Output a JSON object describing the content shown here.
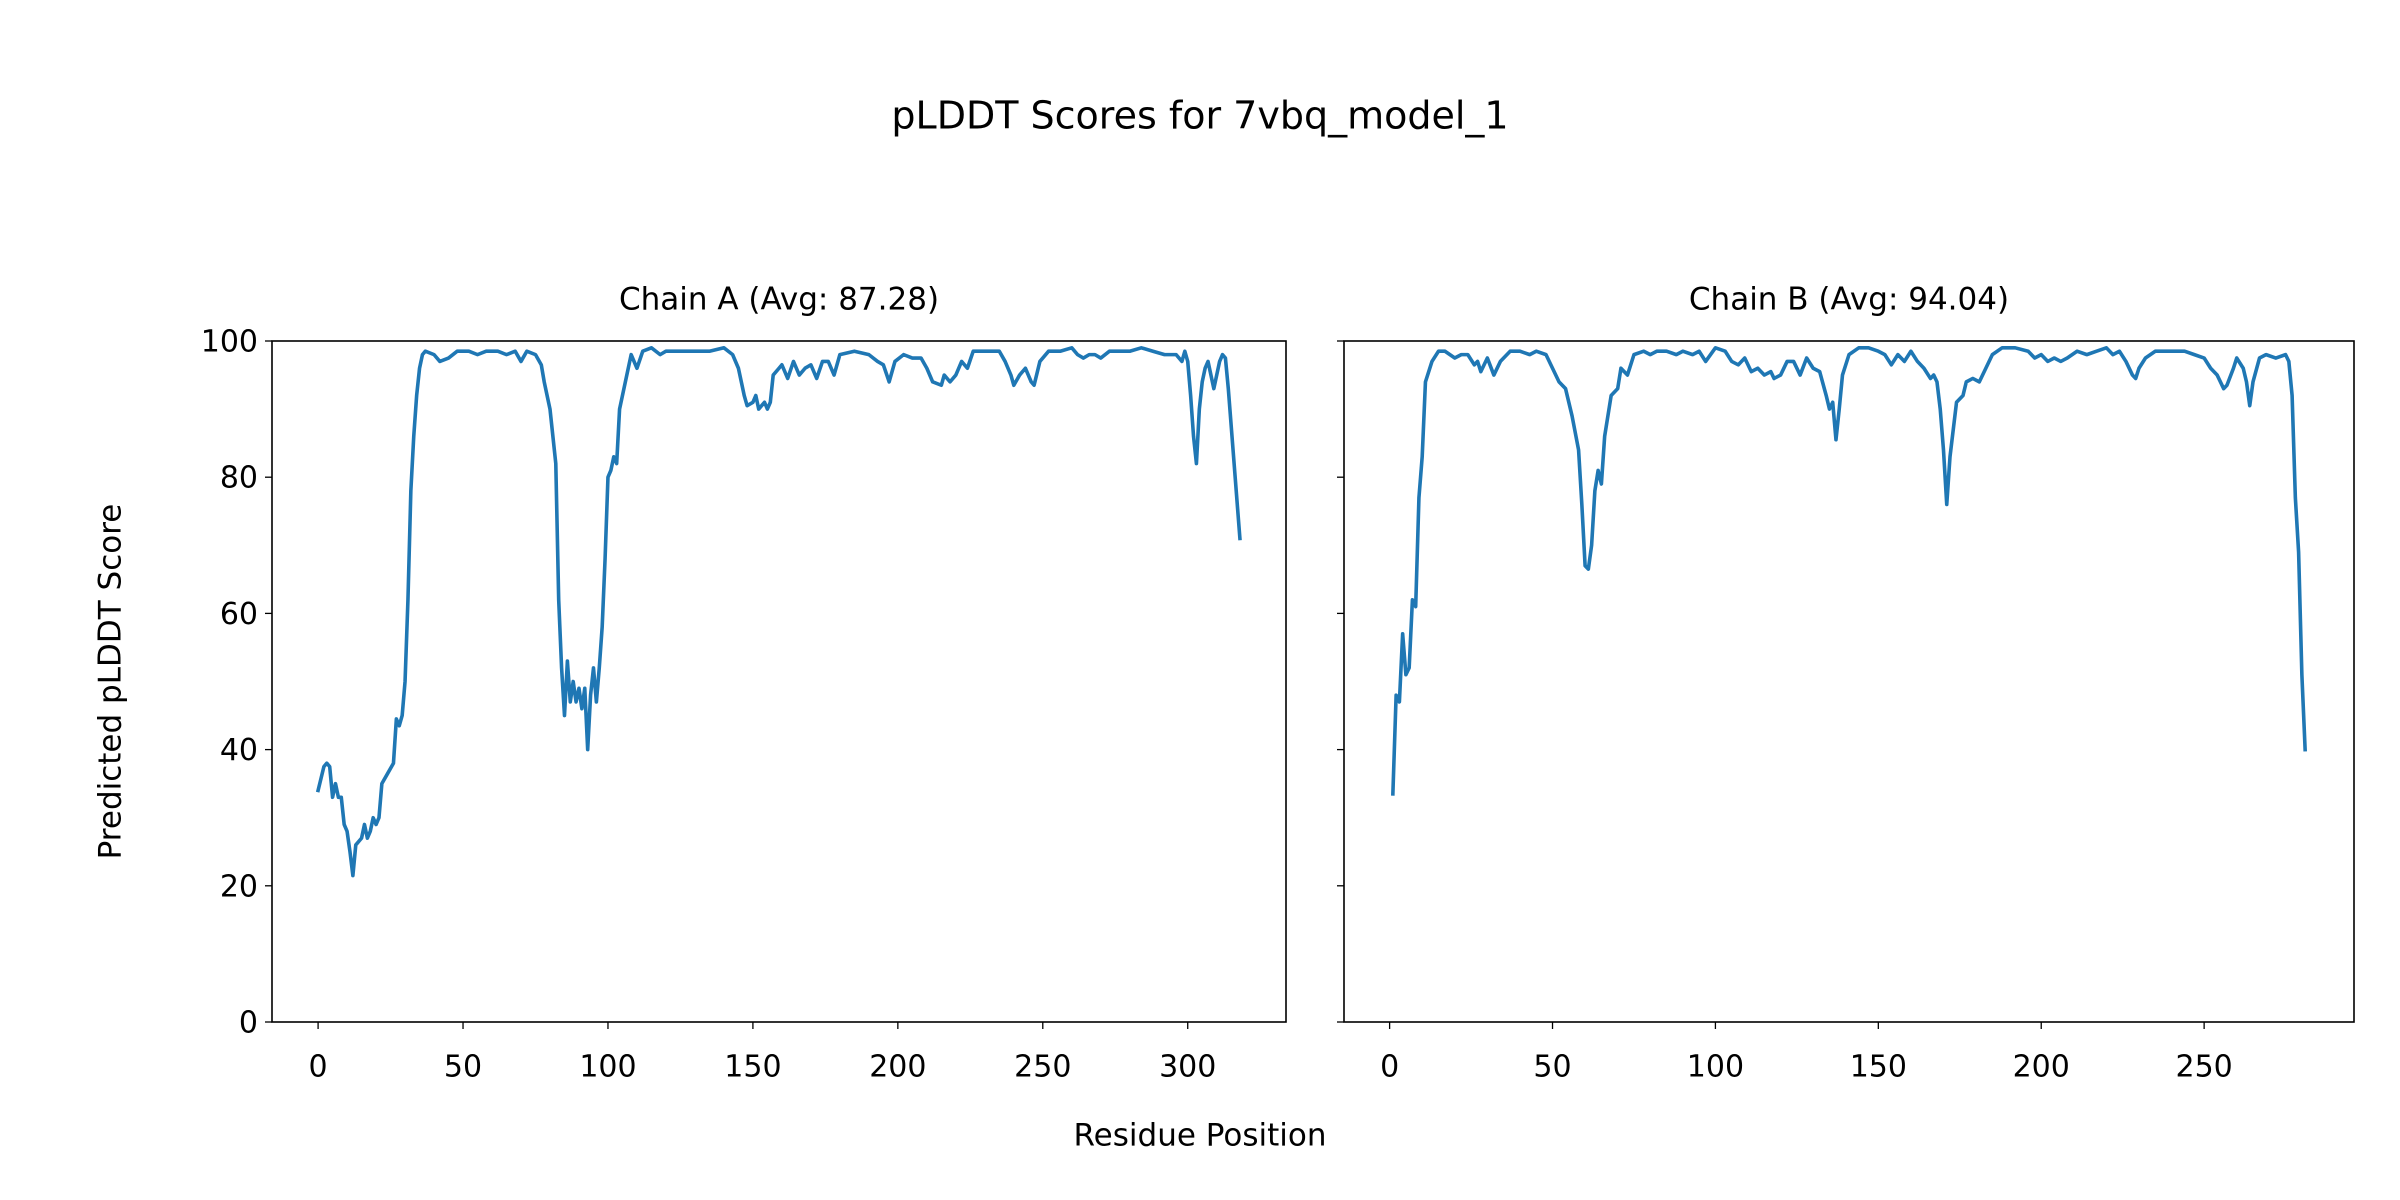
{
  "figure": {
    "title": "pLDDT Scores for 7vbq_model_1",
    "xlabel": "Residue Position"
  },
  "chart_data": [
    {
      "type": "line",
      "title": "Chain A (Avg: 87.28)",
      "ylabel": "Predicted pLDDT Score",
      "color": "#1f77b4",
      "xlim": [
        -15.9,
        333.9
      ],
      "ylim": [
        0,
        100
      ],
      "xticks": [
        0,
        50,
        100,
        150,
        200,
        250,
        300
      ],
      "yticks": [
        0,
        20,
        40,
        60,
        80,
        100
      ],
      "ytick_labels": true,
      "x": [
        0,
        2,
        3,
        4,
        5,
        6,
        7,
        8,
        9,
        10,
        11,
        12,
        13,
        15,
        16,
        17,
        18,
        19,
        20,
        21,
        22,
        24,
        26,
        27,
        28,
        29,
        30,
        31,
        32,
        33,
        34,
        35,
        36,
        37,
        40,
        42,
        45,
        48,
        52,
        55,
        58,
        62,
        65,
        68,
        70,
        72,
        75,
        77,
        78,
        80,
        82,
        83,
        84,
        85,
        86,
        87,
        88,
        89,
        90,
        91,
        92,
        93,
        94,
        95,
        96,
        97,
        98,
        99,
        100,
        101,
        102,
        103,
        104,
        106,
        108,
        110,
        112,
        115,
        118,
        120,
        125,
        130,
        135,
        140,
        143,
        145,
        147,
        148,
        150,
        151,
        152,
        154,
        155,
        156,
        157,
        159,
        160,
        162,
        164,
        166,
        168,
        170,
        172,
        174,
        176,
        178,
        180,
        185,
        190,
        193,
        195,
        197,
        199,
        202,
        205,
        208,
        210,
        212,
        215,
        216,
        218,
        220,
        222,
        224,
        226,
        230,
        235,
        237,
        239,
        240,
        242,
        244,
        246,
        247,
        249,
        252,
        256,
        260,
        262,
        264,
        266,
        268,
        270,
        273,
        276,
        280,
        284,
        288,
        292,
        296,
        298,
        299,
        300,
        301,
        302,
        303,
        304,
        305,
        306,
        307,
        308,
        309,
        310,
        311,
        312,
        313,
        314,
        318
      ],
      "values": [
        34,
        37.5,
        38,
        37.5,
        33,
        35,
        33,
        33,
        29,
        28,
        25,
        21.5,
        26,
        27,
        29,
        27,
        28,
        30,
        29,
        30,
        35,
        36.5,
        38,
        44.5,
        43.5,
        45,
        50,
        62,
        78,
        86,
        92,
        96,
        98,
        98.5,
        98,
        97,
        97.5,
        98.5,
        98.5,
        98,
        98.5,
        98.5,
        98,
        98.5,
        97,
        98.5,
        98,
        96.5,
        94,
        90,
        82,
        62,
        52,
        45,
        53,
        47,
        50,
        47,
        49,
        46,
        49,
        40,
        48,
        52,
        47,
        52,
        58,
        68,
        80,
        81,
        83,
        82,
        90,
        94,
        98,
        96,
        98.5,
        99,
        98,
        98.5,
        98.5,
        98.5,
        98.5,
        99,
        98,
        96,
        92,
        90.5,
        91,
        92,
        90,
        91,
        90,
        91,
        95,
        96,
        96.5,
        94.5,
        97,
        95,
        96,
        96.5,
        94.5,
        97,
        97,
        95,
        98,
        98.5,
        98,
        97,
        96.5,
        94,
        97,
        98,
        97.5,
        97.5,
        96,
        94,
        93.5,
        95,
        94,
        95,
        97,
        96,
        98.5,
        98.5,
        98.5,
        97,
        95,
        93.5,
        95,
        96,
        94,
        93.5,
        97,
        98.5,
        98.5,
        99,
        98,
        97.5,
        98,
        98,
        97.5,
        98.5,
        98.5,
        98.5,
        99,
        98.5,
        98,
        98,
        97,
        98.5,
        97,
        92,
        86,
        82,
        90,
        94,
        96,
        97,
        95,
        93,
        95,
        97,
        98,
        97.5,
        93,
        71
      ]
    },
    {
      "type": "line",
      "title": "Chain B (Avg: 94.04)",
      "color": "#1f77b4",
      "xlim": [
        -14,
        296
      ],
      "ylim": [
        0,
        100
      ],
      "xticks": [
        0,
        50,
        100,
        150,
        200,
        250
      ],
      "yticks": [
        0,
        20,
        40,
        60,
        80,
        100
      ],
      "ytick_labels": false,
      "x": [
        1,
        2,
        3,
        4,
        5,
        6,
        7,
        8,
        9,
        10,
        11,
        13,
        15,
        17,
        20,
        22,
        24,
        26,
        27,
        28,
        30,
        32,
        34,
        37,
        40,
        43,
        45,
        48,
        50,
        52,
        54,
        56,
        58,
        59,
        60,
        61,
        62,
        63,
        64,
        65,
        66,
        68,
        70,
        71,
        73,
        75,
        78,
        80,
        82,
        85,
        88,
        90,
        93,
        95,
        97,
        100,
        103,
        105,
        107,
        109,
        111,
        113,
        115,
        117,
        118,
        120,
        122,
        124,
        126,
        128,
        130,
        132,
        134,
        135,
        136,
        137,
        138,
        139,
        141,
        144,
        147,
        150,
        152,
        154,
        156,
        158,
        160,
        162,
        164,
        166,
        167,
        168,
        169,
        170,
        171,
        172,
        174,
        176,
        177,
        179,
        181,
        183,
        185,
        188,
        192,
        196,
        198,
        200,
        202,
        204,
        206,
        208,
        211,
        214,
        217,
        220,
        222,
        224,
        226,
        228,
        229,
        230,
        232,
        235,
        240,
        244,
        247,
        250,
        252,
        254,
        256,
        257,
        259,
        260,
        262,
        263,
        264,
        265,
        267,
        269,
        272,
        275,
        276,
        277,
        278,
        279,
        280,
        281
      ],
      "values": [
        33.5,
        48,
        47,
        57,
        51,
        52,
        62,
        61,
        77,
        83,
        94,
        97,
        98.5,
        98.5,
        97.5,
        98,
        98,
        96.5,
        97,
        95.5,
        97.5,
        95,
        97,
        98.5,
        98.5,
        98,
        98.5,
        98,
        96,
        94,
        93,
        89,
        84,
        76,
        67,
        66.5,
        70,
        78,
        81,
        79,
        86,
        92,
        93,
        96,
        95,
        98,
        98.5,
        98,
        98.5,
        98.5,
        98,
        98.5,
        98,
        98.5,
        97,
        99,
        98.5,
        97,
        96.5,
        97.5,
        95.5,
        96,
        95,
        95.5,
        94.5,
        95,
        97,
        97,
        95,
        97.5,
        96,
        95.5,
        92,
        90,
        91,
        85.5,
        90,
        95,
        98,
        99,
        99,
        98.5,
        98,
        96.5,
        98,
        97,
        98.5,
        97,
        96,
        94.5,
        95,
        94,
        90,
        84,
        76,
        83,
        91,
        92,
        94,
        94.5,
        94,
        96,
        98,
        99,
        99,
        98.5,
        97.5,
        98,
        97,
        97.5,
        97,
        97.5,
        98.5,
        98,
        98.5,
        99,
        98,
        98.5,
        97,
        95,
        94.5,
        96,
        97.5,
        98.5,
        98.5,
        98.5,
        98,
        97.5,
        96,
        95,
        93,
        93.5,
        96,
        97.5,
        96,
        94,
        90.5,
        94,
        97.5,
        98,
        97.5,
        98,
        97,
        92,
        77,
        69,
        51,
        40
      ]
    }
  ]
}
